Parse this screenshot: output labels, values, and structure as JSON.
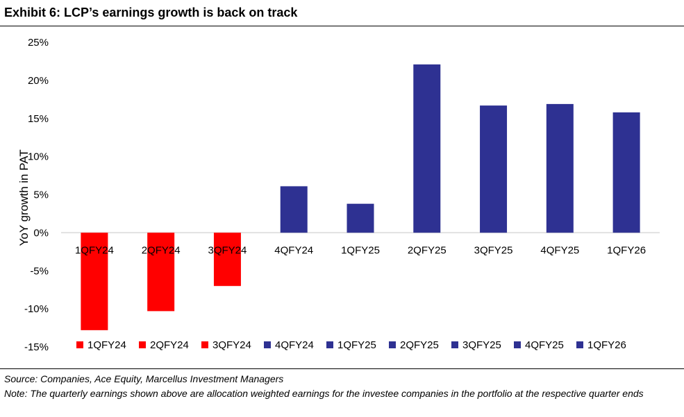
{
  "exhibit_title": "Exhibit 6: LCP’s earnings growth is back on track",
  "source_text": "Source: Companies, Ace Equity, Marcellus Investment Managers",
  "note_text": "Note: The quarterly earnings shown above are allocation weighted earnings for the investee companies in the portfolio at the respective quarter ends",
  "colors": {
    "negative": "#FF0000",
    "positive": "#2E3192",
    "axis": "#D9D9D9"
  },
  "chart_data": {
    "type": "bar",
    "title": "Exhibit 6: LCP’s earnings growth is back on track",
    "xlabel": "",
    "ylabel": "YoY growth in PAT",
    "ylim": [
      -15,
      25
    ],
    "ytick_step": 5,
    "ytick_labels": [
      "25%",
      "20%",
      "15%",
      "10%",
      "5%",
      "0%",
      "-5%",
      "-10%",
      "-15%"
    ],
    "categories": [
      "1QFY24",
      "2QFY24",
      "3QFY24",
      "4QFY24",
      "1QFY25",
      "2QFY25",
      "3QFY25",
      "4QFY25",
      "1QFY26"
    ],
    "values": [
      -12.8,
      -10.3,
      -7.0,
      6.1,
      3.8,
      22.1,
      16.7,
      16.9,
      15.8
    ],
    "grid": false,
    "legend_placement": "bottom"
  }
}
